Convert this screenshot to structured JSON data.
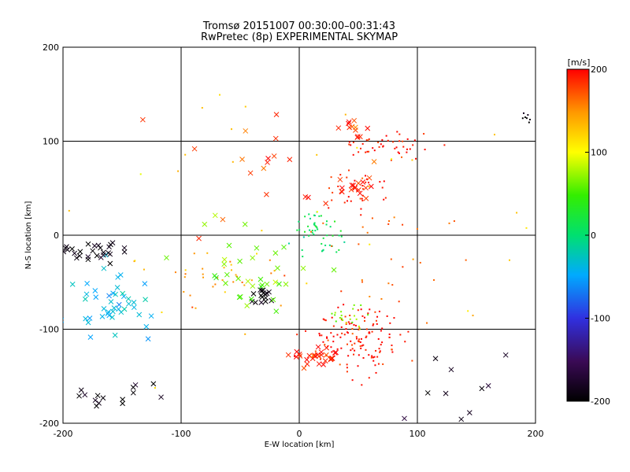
{
  "chart_data": {
    "type": "scatter",
    "title": "Tromsø 20151007 00:30:00–00:31:43",
    "subtitle": "RwPretec (8p) EXPERIMENTAL SKYMAP",
    "xlabel": "E-W location [km]",
    "ylabel": "N-S location [km]",
    "xlim": [
      -200,
      200
    ],
    "ylim": [
      -200,
      200
    ],
    "x_ticks": [
      "-200",
      "-100",
      "0",
      "100",
      "200"
    ],
    "y_ticks": [
      "200",
      "100",
      "0",
      "-100",
      "-200"
    ],
    "grid": true,
    "colorbar": {
      "label": "[m/s]",
      "range": [
        -200,
        200
      ],
      "ticks": [
        "200",
        "100",
        "0",
        "-100",
        "-200"
      ],
      "colormap": "rainbow (black → purple → blue → cyan → green → yellow → red)"
    },
    "marker_types": [
      "x",
      "dot"
    ],
    "clusters": [
      {
        "x": 50,
        "y": -110,
        "spread": [
          18,
          18
        ],
        "velocity": 195,
        "count": 140,
        "marker": "dot"
      },
      {
        "x": 15,
        "y": -130,
        "spread": [
          15,
          6
        ],
        "velocity": 190,
        "count": 30,
        "marker": "x"
      },
      {
        "x": 75,
        "y": 92,
        "spread": [
          22,
          9
        ],
        "velocity": 195,
        "count": 45,
        "marker": "dot"
      },
      {
        "x": 50,
        "y": 115,
        "spread": [
          12,
          5
        ],
        "velocity": 190,
        "count": 12,
        "marker": "x"
      },
      {
        "x": 48,
        "y": 48,
        "spread": [
          12,
          10
        ],
        "velocity": 190,
        "count": 35,
        "marker": "dot"
      },
      {
        "x": 48,
        "y": 50,
        "spread": [
          8,
          6
        ],
        "velocity": 195,
        "count": 14,
        "marker": "x"
      },
      {
        "x": 15,
        "y": 2,
        "spread": [
          11,
          12
        ],
        "velocity": 10,
        "count": 50,
        "marker": "dot"
      },
      {
        "x": 40,
        "y": -88,
        "spread": [
          10,
          7
        ],
        "velocity": 70,
        "count": 20,
        "marker": "dot"
      },
      {
        "x": -160,
        "y": -70,
        "spread": [
          18,
          18
        ],
        "velocity": -40,
        "count": 45,
        "marker": "x"
      },
      {
        "x": -175,
        "y": -18,
        "spread": [
          18,
          6
        ],
        "velocity": -190,
        "count": 30,
        "marker": "x"
      },
      {
        "x": -30,
        "y": -65,
        "spread": [
          8,
          6
        ],
        "velocity": -195,
        "count": 16,
        "marker": "x"
      },
      {
        "x": -70,
        "y": -45,
        "spread": [
          20,
          15
        ],
        "velocity": 150,
        "count": 30,
        "marker": "dot"
      },
      {
        "x": -40,
        "y": -30,
        "spread": [
          25,
          25
        ],
        "velocity": 60,
        "count": 35,
        "marker": "x"
      },
      {
        "x": -160,
        "y": -170,
        "spread": [
          25,
          12
        ],
        "velocity": -200,
        "count": 16,
        "marker": "x"
      },
      {
        "x": 120,
        "y": -160,
        "spread": [
          25,
          20
        ],
        "velocity": -180,
        "count": 12,
        "marker": "x"
      },
      {
        "x": -30,
        "y": 60,
        "spread": [
          40,
          35
        ],
        "velocity": 180,
        "count": 22,
        "marker": "x"
      },
      {
        "x": 80,
        "y": -30,
        "spread": [
          50,
          40
        ],
        "velocity": 170,
        "count": 30,
        "marker": "dot"
      },
      {
        "x": 190,
        "y": 125,
        "spread": [
          5,
          3
        ],
        "velocity": -200,
        "count": 8,
        "marker": "dot"
      },
      {
        "x": 0,
        "y": 0,
        "spread": [
          130,
          110
        ],
        "velocity": 120,
        "count": 40,
        "marker": "dot"
      }
    ]
  }
}
